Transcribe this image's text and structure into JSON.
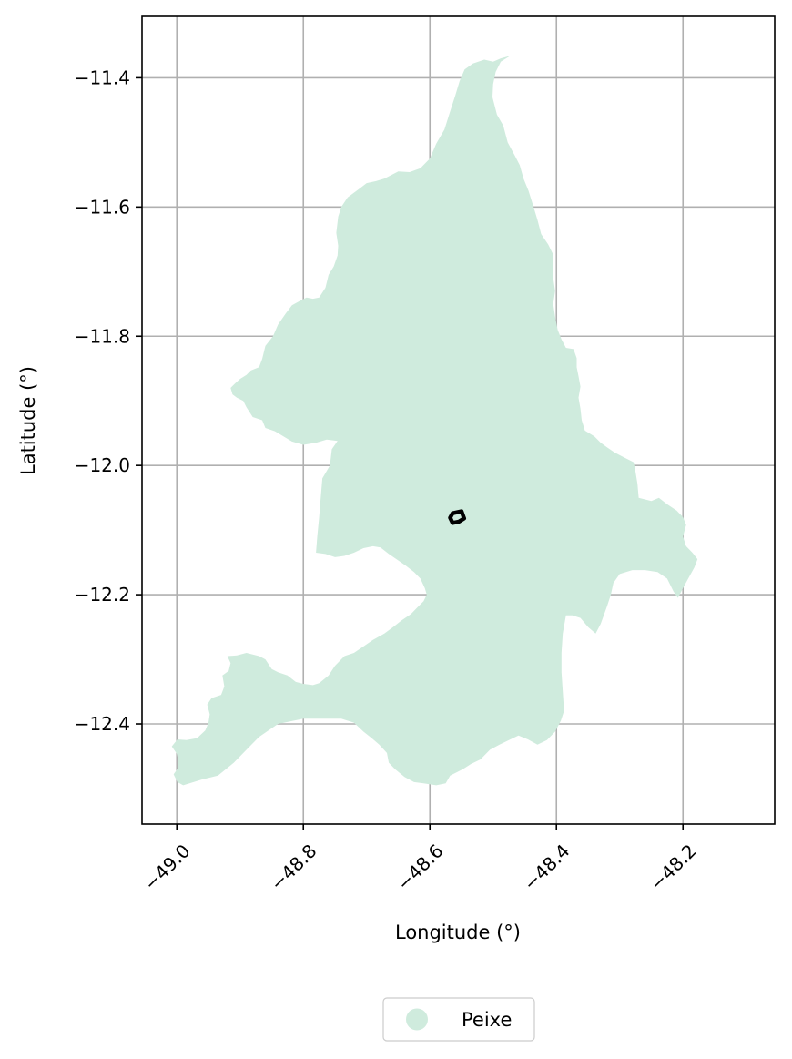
{
  "chart_data": {
    "type": "map",
    "xlabel": "Longitude (°)",
    "ylabel": "Latitude (°)",
    "xlim": [
      -49.055,
      -48.055
    ],
    "ylim": [
      -12.555,
      -11.305
    ],
    "grid": true,
    "legend_placement": "bottom-center",
    "x_ticks": [
      {
        "value": -49.0,
        "label": "−49.0"
      },
      {
        "value": -48.8,
        "label": "−48.8"
      },
      {
        "value": -48.6,
        "label": "−48.6"
      },
      {
        "value": -48.4,
        "label": "−48.4"
      },
      {
        "value": -48.2,
        "label": "−48.2"
      }
    ],
    "y_ticks": [
      {
        "value": -11.4,
        "label": "−11.4"
      },
      {
        "value": -11.6,
        "label": "−11.6"
      },
      {
        "value": -11.8,
        "label": "−11.8"
      },
      {
        "value": -12.0,
        "label": "−12.0"
      },
      {
        "value": -12.2,
        "label": "−12.2"
      },
      {
        "value": -12.4,
        "label": "−12.4"
      }
    ],
    "region": {
      "name": "Peixe",
      "color": "#cfebdd",
      "polygon": [
        [
          -48.473,
          -11.366
        ],
        [
          -48.488,
          -11.375
        ],
        [
          -48.496,
          -11.391
        ],
        [
          -48.5,
          -11.41
        ],
        [
          -48.501,
          -11.43
        ],
        [
          -48.494,
          -11.457
        ],
        [
          -48.484,
          -11.474
        ],
        [
          -48.477,
          -11.5
        ],
        [
          -48.466,
          -11.52
        ],
        [
          -48.458,
          -11.535
        ],
        [
          -48.452,
          -11.556
        ],
        [
          -48.444,
          -11.575
        ],
        [
          -48.437,
          -11.597
        ],
        [
          -48.43,
          -11.62
        ],
        [
          -48.424,
          -11.642
        ],
        [
          -48.413,
          -11.658
        ],
        [
          -48.406,
          -11.672
        ],
        [
          -48.405,
          -11.69
        ],
        [
          -48.405,
          -11.71
        ],
        [
          -48.402,
          -11.73
        ],
        [
          -48.405,
          -11.75
        ],
        [
          -48.402,
          -11.77
        ],
        [
          -48.398,
          -11.79
        ],
        [
          -48.392,
          -11.805
        ],
        [
          -48.385,
          -11.818
        ],
        [
          -48.373,
          -11.82
        ],
        [
          -48.368,
          -11.834
        ],
        [
          -48.368,
          -11.848
        ],
        [
          -48.365,
          -11.862
        ],
        [
          -48.362,
          -11.878
        ],
        [
          -48.365,
          -11.895
        ],
        [
          -48.362,
          -11.912
        ],
        [
          -48.36,
          -11.93
        ],
        [
          -48.355,
          -11.946
        ],
        [
          -48.34,
          -11.955
        ],
        [
          -48.33,
          -11.965
        ],
        [
          -48.32,
          -11.972
        ],
        [
          -48.308,
          -11.98
        ],
        [
          -48.292,
          -11.988
        ],
        [
          -48.278,
          -11.995
        ],
        [
          -48.275,
          -12.01
        ],
        [
          -48.272,
          -12.028
        ],
        [
          -48.27,
          -12.05
        ],
        [
          -48.25,
          -12.055
        ],
        [
          -48.238,
          -12.05
        ],
        [
          -48.225,
          -12.06
        ],
        [
          -48.21,
          -12.07
        ],
        [
          -48.2,
          -12.08
        ],
        [
          -48.195,
          -12.092
        ],
        [
          -48.2,
          -12.11
        ],
        [
          -48.195,
          -12.125
        ],
        [
          -48.185,
          -12.135
        ],
        [
          -48.177,
          -12.145
        ],
        [
          -48.182,
          -12.158
        ],
        [
          -48.19,
          -12.172
        ],
        [
          -48.2,
          -12.19
        ],
        [
          -48.208,
          -12.205
        ],
        [
          -48.215,
          -12.195
        ],
        [
          -48.225,
          -12.175
        ],
        [
          -48.24,
          -12.165
        ],
        [
          -48.26,
          -12.162
        ],
        [
          -48.28,
          -12.162
        ],
        [
          -48.3,
          -12.168
        ],
        [
          -48.31,
          -12.182
        ],
        [
          -48.314,
          -12.2
        ],
        [
          -48.32,
          -12.218
        ],
        [
          -48.33,
          -12.245
        ],
        [
          -48.338,
          -12.26
        ],
        [
          -48.35,
          -12.25
        ],
        [
          -48.362,
          -12.236
        ],
        [
          -48.375,
          -12.232
        ],
        [
          -48.385,
          -12.232
        ],
        [
          -48.39,
          -12.26
        ],
        [
          -48.392,
          -12.29
        ],
        [
          -48.392,
          -12.32
        ],
        [
          -48.39,
          -12.35
        ],
        [
          -48.388,
          -12.38
        ],
        [
          -48.393,
          -12.395
        ],
        [
          -48.402,
          -12.412
        ],
        [
          -48.415,
          -12.425
        ],
        [
          -48.43,
          -12.432
        ],
        [
          -48.445,
          -12.424
        ],
        [
          -48.46,
          -12.418
        ],
        [
          -48.475,
          -12.425
        ],
        [
          -48.49,
          -12.432
        ],
        [
          -48.505,
          -12.44
        ],
        [
          -48.52,
          -12.455
        ],
        [
          -48.535,
          -12.462
        ],
        [
          -48.548,
          -12.47
        ],
        [
          -48.568,
          -12.48
        ],
        [
          -48.575,
          -12.492
        ],
        [
          -48.59,
          -12.495
        ],
        [
          -48.61,
          -12.492
        ],
        [
          -48.625,
          -12.49
        ],
        [
          -48.64,
          -12.482
        ],
        [
          -48.655,
          -12.47
        ],
        [
          -48.665,
          -12.46
        ],
        [
          -48.668,
          -12.445
        ],
        [
          -48.68,
          -12.432
        ],
        [
          -48.692,
          -12.422
        ],
        [
          -48.705,
          -12.412
        ],
        [
          -48.72,
          -12.398
        ],
        [
          -48.74,
          -12.392
        ],
        [
          -48.76,
          -12.392
        ],
        [
          -48.8,
          -12.392
        ],
        [
          -48.84,
          -12.4
        ],
        [
          -48.87,
          -12.42
        ],
        [
          -48.89,
          -12.44
        ],
        [
          -48.91,
          -12.46
        ],
        [
          -48.935,
          -12.48
        ],
        [
          -48.96,
          -12.486
        ],
        [
          -48.99,
          -12.495
        ],
        [
          -48.999,
          -12.49
        ],
        [
          -49.005,
          -12.478
        ],
        [
          -48.998,
          -12.468
        ],
        [
          -48.998,
          -12.455
        ],
        [
          -49.0,
          -12.446
        ],
        [
          -49.008,
          -12.435
        ],
        [
          -48.999,
          -12.424
        ],
        [
          -48.985,
          -12.425
        ],
        [
          -48.968,
          -12.422
        ],
        [
          -48.955,
          -12.41
        ],
        [
          -48.95,
          -12.398
        ],
        [
          -48.948,
          -12.385
        ],
        [
          -48.952,
          -12.37
        ],
        [
          -48.945,
          -12.36
        ],
        [
          -48.93,
          -12.355
        ],
        [
          -48.925,
          -12.342
        ],
        [
          -48.928,
          -12.325
        ],
        [
          -48.918,
          -12.318
        ],
        [
          -48.915,
          -12.306
        ],
        [
          -48.92,
          -12.295
        ],
        [
          -48.905,
          -12.294
        ],
        [
          -48.89,
          -12.29
        ],
        [
          -48.87,
          -12.295
        ],
        [
          -48.86,
          -12.3
        ],
        [
          -48.85,
          -12.315
        ],
        [
          -48.84,
          -12.32
        ],
        [
          -48.825,
          -12.325
        ],
        [
          -48.812,
          -12.335
        ],
        [
          -48.8,
          -12.338
        ],
        [
          -48.785,
          -12.34
        ],
        [
          -48.775,
          -12.337
        ],
        [
          -48.76,
          -12.325
        ],
        [
          -48.75,
          -12.31
        ],
        [
          -48.735,
          -12.295
        ],
        [
          -48.72,
          -12.29
        ],
        [
          -48.705,
          -12.28
        ],
        [
          -48.69,
          -12.27
        ],
        [
          -48.672,
          -12.26
        ],
        [
          -48.658,
          -12.25
        ],
        [
          -48.645,
          -12.24
        ],
        [
          -48.63,
          -12.23
        ],
        [
          -48.62,
          -12.22
        ],
        [
          -48.61,
          -12.21
        ],
        [
          -48.605,
          -12.2
        ],
        [
          -48.608,
          -12.19
        ],
        [
          -48.615,
          -12.175
        ],
        [
          -48.625,
          -12.165
        ],
        [
          -48.638,
          -12.155
        ],
        [
          -48.65,
          -12.147
        ],
        [
          -48.665,
          -12.137
        ],
        [
          -48.678,
          -12.127
        ],
        [
          -48.69,
          -12.125
        ],
        [
          -48.705,
          -12.128
        ],
        [
          -48.72,
          -12.135
        ],
        [
          -48.735,
          -12.14
        ],
        [
          -48.75,
          -12.142
        ],
        [
          -48.765,
          -12.137
        ],
        [
          -48.78,
          -12.135
        ],
        [
          -48.778,
          -12.11
        ],
        [
          -48.775,
          -12.08
        ],
        [
          -48.773,
          -12.055
        ],
        [
          -48.77,
          -12.02
        ],
        [
          -48.758,
          -12.0
        ],
        [
          -48.755,
          -11.975
        ],
        [
          -48.746,
          -11.962
        ],
        [
          -48.763,
          -11.96
        ],
        [
          -48.78,
          -11.965
        ],
        [
          -48.8,
          -11.968
        ],
        [
          -48.818,
          -11.963
        ],
        [
          -48.83,
          -11.956
        ],
        [
          -48.845,
          -11.947
        ],
        [
          -48.86,
          -11.942
        ],
        [
          -48.865,
          -11.93
        ],
        [
          -48.88,
          -11.925
        ],
        [
          -48.89,
          -11.91
        ],
        [
          -48.895,
          -11.9
        ],
        [
          -48.905,
          -11.895
        ],
        [
          -48.912,
          -11.89
        ],
        [
          -48.915,
          -11.88
        ],
        [
          -48.908,
          -11.873
        ],
        [
          -48.9,
          -11.866
        ],
        [
          -48.89,
          -11.86
        ],
        [
          -48.883,
          -11.853
        ],
        [
          -48.87,
          -11.848
        ],
        [
          -48.865,
          -11.835
        ],
        [
          -48.86,
          -11.815
        ],
        [
          -48.848,
          -11.8
        ],
        [
          -48.84,
          -11.782
        ],
        [
          -48.828,
          -11.765
        ],
        [
          -48.818,
          -11.752
        ],
        [
          -48.805,
          -11.745
        ],
        [
          -48.795,
          -11.74
        ],
        [
          -48.785,
          -11.742
        ],
        [
          -48.775,
          -11.74
        ],
        [
          -48.765,
          -11.725
        ],
        [
          -48.76,
          -11.705
        ],
        [
          -48.752,
          -11.692
        ],
        [
          -48.746,
          -11.675
        ],
        [
          -48.745,
          -11.66
        ],
        [
          -48.748,
          -11.64
        ],
        [
          -48.745,
          -11.615
        ],
        [
          -48.74,
          -11.6
        ],
        [
          -48.73,
          -11.585
        ],
        [
          -48.712,
          -11.572
        ],
        [
          -48.7,
          -11.563
        ],
        [
          -48.685,
          -11.56
        ],
        [
          -48.672,
          -11.556
        ],
        [
          -48.66,
          -11.55
        ],
        [
          -48.65,
          -11.545
        ],
        [
          -48.632,
          -11.546
        ],
        [
          -48.615,
          -11.54
        ],
        [
          -48.6,
          -11.525
        ],
        [
          -48.59,
          -11.502
        ],
        [
          -48.577,
          -11.48
        ],
        [
          -48.568,
          -11.452
        ],
        [
          -48.56,
          -11.428
        ],
        [
          -48.553,
          -11.405
        ],
        [
          -48.545,
          -11.387
        ],
        [
          -48.532,
          -11.378
        ],
        [
          -48.514,
          -11.372
        ],
        [
          -48.5,
          -11.375
        ],
        [
          -48.488,
          -11.37
        ],
        [
          -48.473,
          -11.366
        ]
      ]
    },
    "marker": {
      "shape": "outline",
      "polygon": [
        [
          -48.564,
          -12.074
        ],
        [
          -48.55,
          -12.071
        ],
        [
          -48.546,
          -12.082
        ],
        [
          -48.554,
          -12.087
        ],
        [
          -48.564,
          -12.089
        ],
        [
          -48.568,
          -12.081
        ],
        [
          -48.564,
          -12.074
        ]
      ]
    },
    "legend": [
      {
        "label": "Peixe",
        "color": "#cfebdd"
      }
    ]
  }
}
